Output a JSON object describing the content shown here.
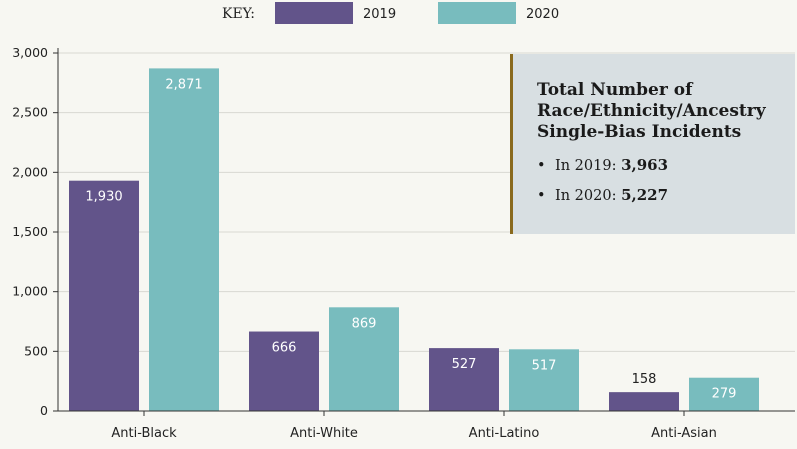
{
  "chart_data": {
    "type": "bar",
    "categories": [
      "Anti-Black",
      "Anti-White",
      "Anti-Latino",
      "Anti-Asian"
    ],
    "series": [
      {
        "name": "2019",
        "values": [
          1930,
          666,
          527,
          158
        ],
        "labels": [
          "1,930",
          "666",
          "527",
          "158"
        ],
        "color": "#62548a"
      },
      {
        "name": "2020",
        "values": [
          2871,
          869,
          517,
          279
        ],
        "labels": [
          "2,871",
          "869",
          "517",
          "279"
        ],
        "color": "#78bcbe"
      }
    ],
    "ylim": [
      0,
      3000
    ],
    "yticks": [
      0,
      500,
      1000,
      1500,
      2000,
      2500,
      3000
    ],
    "ytick_labels": [
      "0",
      "500",
      "1,000",
      "1,500",
      "2,000",
      "2,500",
      "3,000"
    ],
    "grid": true,
    "legend_key_label": "KEY:",
    "legend_position": "top-center"
  },
  "info_box": {
    "title_lines": [
      "Total Number of",
      "Race/Ethnicity/Ancestry",
      "Single-Bias Incidents"
    ],
    "items": [
      {
        "bullet": "•",
        "label": "In 2019:",
        "value": "3,963"
      },
      {
        "bullet": "•",
        "label": "In 2020:",
        "value": "5,227"
      }
    ]
  }
}
